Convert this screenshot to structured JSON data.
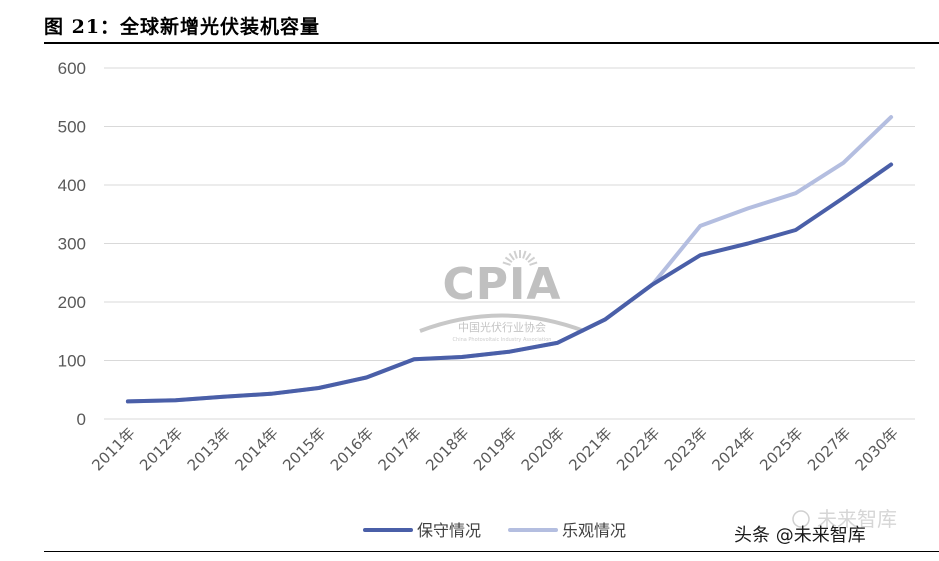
{
  "figure": {
    "title": "图  21：全球新增光伏装机容量"
  },
  "chart_data": {
    "type": "line",
    "categories": [
      "2011年",
      "2012年",
      "2013年",
      "2014年",
      "2015年",
      "2016年",
      "2017年",
      "2018年",
      "2019年",
      "2020年",
      "2021年",
      "2022年",
      "2023年",
      "2024年",
      "2025年",
      "2027年",
      "2030年"
    ],
    "series": [
      {
        "name": "保守情况",
        "color": "#4A5FA8",
        "values": [
          30,
          32,
          38,
          43,
          53,
          71,
          102,
          106,
          115,
          130,
          170,
          230,
          280,
          300,
          323,
          378,
          435
        ]
      },
      {
        "name": "乐观情况",
        "color": "#B4BEE0",
        "values": [
          30,
          32,
          38,
          43,
          53,
          71,
          102,
          106,
          115,
          130,
          170,
          230,
          330,
          360,
          386,
          438,
          516
        ]
      }
    ],
    "yticks": [
      "0",
      "100",
      "200",
      "300",
      "400",
      "500",
      "600"
    ],
    "ylim": [
      0,
      600
    ],
    "grid": true,
    "legend_position": "bottom"
  },
  "watermark": {
    "logo_text": "CPIA",
    "org_name_cn": "中国光伏行业协会",
    "org_name_en": "China Photovoltaic Industry Association",
    "source_label": "头条 @未来智库",
    "source_shadow": "未来智库"
  }
}
